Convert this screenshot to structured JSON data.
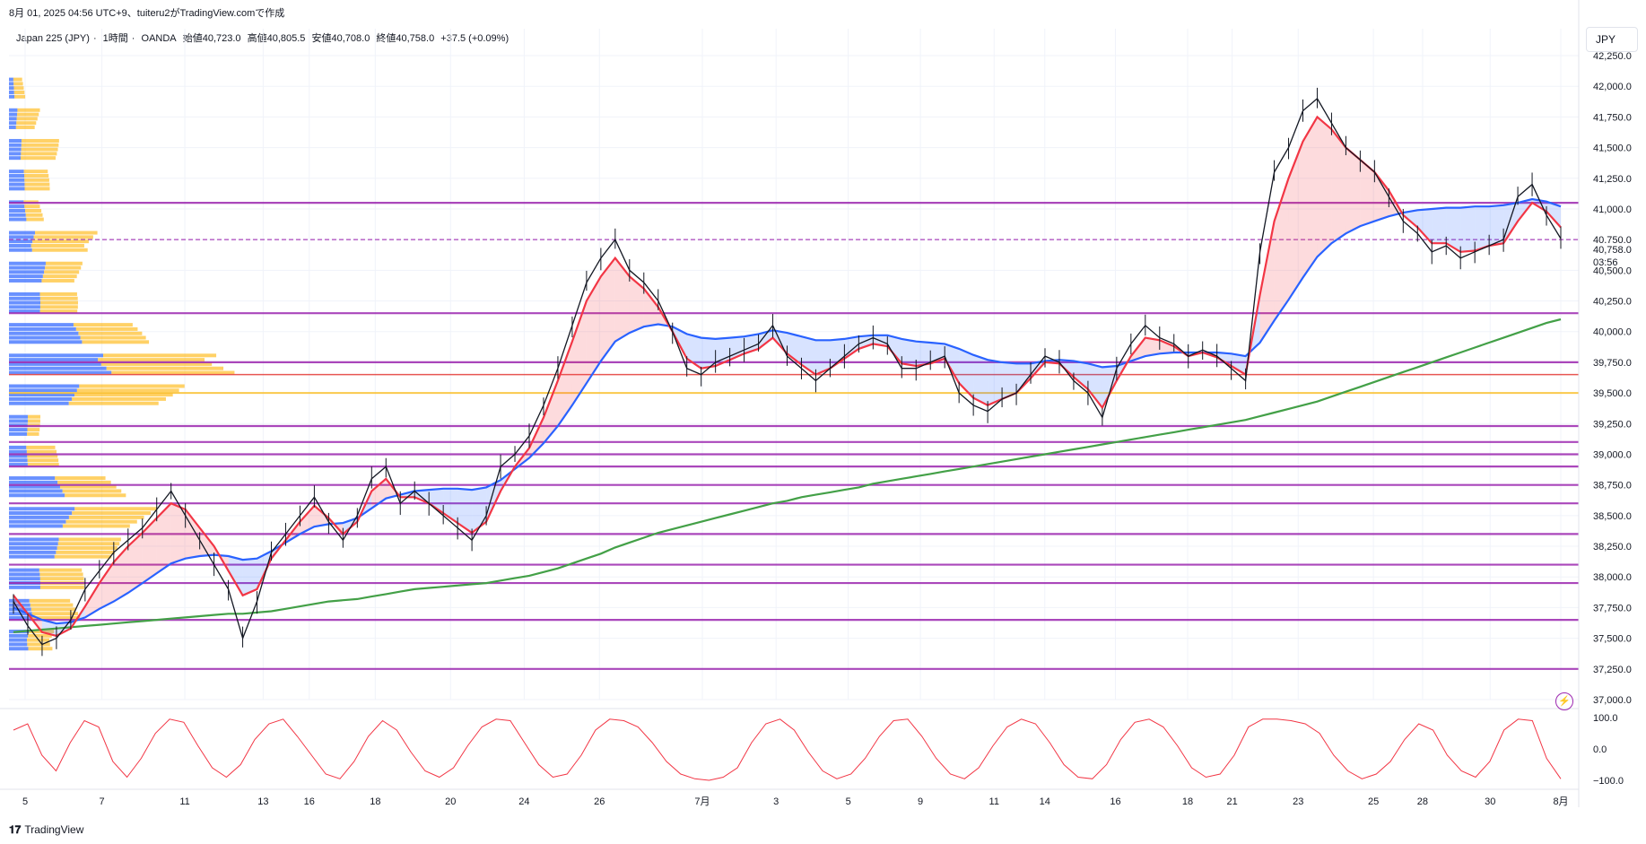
{
  "header": {
    "caption": "8月 01, 2025 04:56 UTC+9、tuiteru2がTradingView.comで作成"
  },
  "legend": {
    "symbol": "Japan 225 (JPY)",
    "interval": "1時間",
    "source": "OANDA",
    "open": "始値40,723.0",
    "high": "高値40,805.5",
    "low": "安値40,708.0",
    "close": "終値40,758.0",
    "change": "+37.5 (+0.09%)"
  },
  "currency_button": "JPY",
  "branding": "TradingView",
  "price_label": {
    "value": "40,758.0",
    "countdown": "03:56"
  },
  "oscillator_ticks": [
    "100.0",
    "0.0",
    "−100.0"
  ],
  "colors": {
    "up": "#131722",
    "ema_fast": "#f23645",
    "ema_mid": "#2962ff",
    "ema_slow": "#43a047",
    "resistance": "#9c27b0",
    "poc": "#e53935",
    "value_area": "#fbc02d",
    "vp_blue": "#2962ff",
    "vp_yellow": "#ffb300"
  },
  "chart_data": {
    "type": "line",
    "title": "",
    "ylim": [
      37000,
      42250
    ],
    "y_ticks": [
      37000,
      37250,
      37500,
      37750,
      38000,
      38250,
      38500,
      38750,
      39000,
      39250,
      39500,
      39750,
      40000,
      40250,
      40500,
      40750,
      41000,
      41250,
      41500,
      41750,
      42000,
      42250
    ],
    "y_tick_labels": [
      "37,000.0",
      "37,250.0",
      "37,500.0",
      "37,750.0",
      "38,000.0",
      "38,250.0",
      "38,500.0",
      "38,750.0",
      "39,000.0",
      "39,250.0",
      "39,500.0",
      "39,750.0",
      "40,000.0",
      "40,250.0",
      "40,500.0",
      "40,750.0",
      "41,000.0",
      "41,250.0",
      "41,500.0",
      "41,750.0",
      "42,000.0",
      "42,250.0"
    ],
    "x_tick_labels": [
      "5",
      "7",
      "11",
      "13",
      "16",
      "18",
      "20",
      "24",
      "26",
      "7月",
      "3",
      "5",
      "9",
      "11",
      "14",
      "16",
      "18",
      "21",
      "23",
      "25",
      "28",
      "30",
      "8月"
    ],
    "x_tick_positions": [
      0.0,
      0.05,
      0.104,
      0.155,
      0.185,
      0.228,
      0.277,
      0.325,
      0.374,
      0.441,
      0.489,
      0.536,
      0.583,
      0.631,
      0.664,
      0.71,
      0.757,
      0.786,
      0.829,
      0.878,
      0.91,
      0.954,
      1.0
    ],
    "series": [
      {
        "role": "price",
        "values": [
          37800,
          37600,
          37450,
          37500,
          37650,
          37900,
          38050,
          38200,
          38300,
          38400,
          38550,
          38700,
          38500,
          38300,
          38100,
          37900,
          37500,
          37800,
          38200,
          38350,
          38500,
          38650,
          38450,
          38300,
          38500,
          38800,
          38900,
          38600,
          38700,
          38600,
          38500,
          38400,
          38300,
          38500,
          38900,
          39000,
          39150,
          39400,
          39700,
          40050,
          40400,
          40600,
          40750,
          40500,
          40400,
          40250,
          40000,
          39700,
          39650,
          39750,
          39800,
          39850,
          39900,
          40050,
          39800,
          39700,
          39600,
          39700,
          39800,
          39900,
          39950,
          39900,
          39700,
          39700,
          39750,
          39800,
          39500,
          39400,
          39350,
          39450,
          39500,
          39650,
          39800,
          39750,
          39600,
          39500,
          39300,
          39700,
          39900,
          40050,
          39950,
          39900,
          39800,
          39850,
          39800,
          39700,
          39600,
          40650,
          41300,
          41500,
          41800,
          41900,
          41700,
          41500,
          41400,
          41300,
          41100,
          40900,
          40800,
          40650,
          40700,
          40600,
          40650,
          40700,
          40750,
          41100,
          41200,
          40950,
          40758
        ]
      },
      {
        "role": "ema_fast",
        "values": [
          37850,
          37700,
          37550,
          37520,
          37580,
          37760,
          37950,
          38120,
          38250,
          38360,
          38480,
          38600,
          38550,
          38400,
          38250,
          38050,
          37850,
          37900,
          38150,
          38300,
          38450,
          38580,
          38480,
          38350,
          38450,
          38700,
          38800,
          38650,
          38650,
          38600,
          38520,
          38440,
          38360,
          38450,
          38700,
          38900,
          39050,
          39300,
          39600,
          39920,
          40250,
          40450,
          40600,
          40450,
          40350,
          40200,
          40000,
          39780,
          39700,
          39720,
          39770,
          39820,
          39860,
          39950,
          39820,
          39730,
          39650,
          39700,
          39780,
          39860,
          39900,
          39880,
          39740,
          39720,
          39740,
          39780,
          39580,
          39460,
          39400,
          39450,
          39500,
          39620,
          39750,
          39740,
          39630,
          39530,
          39380,
          39600,
          39800,
          39950,
          39930,
          39880,
          39800,
          39830,
          39790,
          39720,
          39650,
          40300,
          40900,
          41250,
          41550,
          41750,
          41650,
          41500,
          41400,
          41300,
          41150,
          40950,
          40850,
          40720,
          40720,
          40650,
          40660,
          40700,
          40720,
          40900,
          41050,
          40980,
          40850
        ]
      },
      {
        "role": "ema_mid",
        "values": [
          37750,
          37700,
          37650,
          37620,
          37630,
          37670,
          37740,
          37800,
          37870,
          37950,
          38030,
          38110,
          38150,
          38170,
          38180,
          38170,
          38140,
          38150,
          38210,
          38280,
          38350,
          38410,
          38430,
          38440,
          38480,
          38560,
          38640,
          38670,
          38700,
          38710,
          38720,
          38720,
          38710,
          38730,
          38790,
          38880,
          38970,
          39090,
          39230,
          39400,
          39580,
          39760,
          39920,
          39990,
          40040,
          40060,
          40040,
          39980,
          39950,
          39940,
          39950,
          39960,
          39980,
          40010,
          39990,
          39960,
          39930,
          39930,
          39940,
          39960,
          39970,
          39970,
          39940,
          39920,
          39910,
          39900,
          39860,
          39810,
          39770,
          39750,
          39740,
          39740,
          39760,
          39770,
          39760,
          39740,
          39710,
          39720,
          39760,
          39800,
          39820,
          39830,
          39830,
          39830,
          39830,
          39820,
          39800,
          39910,
          40090,
          40260,
          40440,
          40610,
          40720,
          40800,
          40860,
          40900,
          40940,
          40970,
          40990,
          41000,
          41010,
          41010,
          41020,
          41020,
          41030,
          41050,
          41080,
          41060,
          41020
        ]
      },
      {
        "role": "ema_slow",
        "values": [
          37550,
          37560,
          37570,
          37580,
          37590,
          37600,
          37610,
          37620,
          37630,
          37640,
          37650,
          37660,
          37670,
          37680,
          37690,
          37700,
          37700,
          37710,
          37720,
          37740,
          37760,
          37780,
          37800,
          37810,
          37820,
          37840,
          37860,
          37880,
          37900,
          37910,
          37920,
          37930,
          37940,
          37950,
          37970,
          37990,
          38010,
          38040,
          38070,
          38110,
          38150,
          38190,
          38240,
          38280,
          38320,
          38360,
          38390,
          38420,
          38450,
          38480,
          38510,
          38540,
          38570,
          38600,
          38620,
          38650,
          38670,
          38690,
          38710,
          38730,
          38760,
          38780,
          38800,
          38820,
          38840,
          38860,
          38880,
          38900,
          38920,
          38940,
          38960,
          38980,
          39000,
          39020,
          39040,
          39060,
          39080,
          39100,
          39120,
          39140,
          39160,
          39180,
          39200,
          39220,
          39240,
          39260,
          39280,
          39310,
          39340,
          39370,
          39400,
          39430,
          39470,
          39510,
          39550,
          39590,
          39630,
          39670,
          39710,
          39750,
          39790,
          39830,
          39870,
          39910,
          39950,
          39990,
          40030,
          40070,
          40100
        ]
      }
    ],
    "horizontal_levels": [
      41050,
      40750,
      40150,
      39750,
      39650,
      39500,
      39230,
      39100,
      39000,
      38900,
      38750,
      38600,
      38350,
      38100,
      37950,
      37650,
      37250
    ],
    "volume_profile_levels": [
      42000,
      41750,
      41500,
      41250,
      41000,
      40750,
      40500,
      40250,
      40000,
      39750,
      39500,
      39250,
      39000,
      38750,
      38500,
      38250,
      38000,
      37750,
      37500
    ],
    "volume_profile_blue": [
      0.01,
      0.015,
      0.02,
      0.025,
      0.03,
      0.05,
      0.06,
      0.05,
      0.12,
      0.2,
      0.12,
      0.03,
      0.03,
      0.1,
      0.12,
      0.08,
      0.05,
      0.04,
      0.04
    ],
    "volume_profile_yellow": [
      0.02,
      0.04,
      0.06,
      0.04,
      0.03,
      0.12,
      0.06,
      0.06,
      0.11,
      0.24,
      0.18,
      0.02,
      0.05,
      0.11,
      0.15,
      0.1,
      0.07,
      0.08,
      0.05
    ],
    "oscillator_values": [
      60,
      80,
      -20,
      -70,
      20,
      90,
      70,
      -40,
      -90,
      -30,
      50,
      95,
      85,
      10,
      -60,
      -90,
      -50,
      30,
      80,
      95,
      40,
      -20,
      -80,
      -95,
      -40,
      40,
      90,
      60,
      -10,
      -70,
      -90,
      -60,
      10,
      70,
      95,
      90,
      20,
      -50,
      -90,
      -80,
      -20,
      60,
      95,
      90,
      70,
      20,
      -40,
      -80,
      -95,
      -100,
      -90,
      -60,
      20,
      80,
      95,
      60,
      -10,
      -70,
      -95,
      -80,
      -30,
      40,
      90,
      95,
      40,
      -30,
      -80,
      -95,
      -60,
      10,
      70,
      95,
      80,
      20,
      -50,
      -90,
      -95,
      -50,
      30,
      85,
      95,
      70,
      10,
      -60,
      -90,
      -80,
      -20,
      70,
      95,
      95,
      90,
      80,
      50,
      -20,
      -70,
      -95,
      -80,
      -40,
      30,
      80,
      60,
      -20,
      -70,
      -90,
      -40,
      60,
      95,
      90,
      -30,
      -95
    ]
  }
}
